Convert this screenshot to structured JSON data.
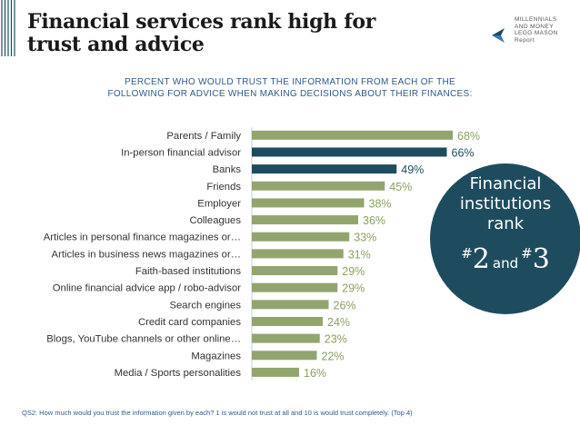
{
  "title_lines": [
    "Financial services rank high for",
    "trust and advice"
  ],
  "logo_lines": [
    "MILLENNIALS",
    "AND MONEY",
    "LEGG MASON",
    "Report"
  ],
  "subtitle_lines": [
    "PERCENT WHO WOULD TRUST THE INFORMATION FROM EACH OF THE",
    "FOLLOWING FOR ADVICE WHEN MAKING DECISIONS ABOUT THEIR FINANCES:"
  ],
  "colors": {
    "normal_bar": "#93a56f",
    "highlight_bar": "#1e4c5e",
    "normal_label": "#8aa060",
    "highlight_label": "#1e4c5e"
  },
  "chart_data": {
    "type": "bar",
    "orientation": "horizontal",
    "categories": [
      "Parents / Family",
      "In-person financial advisor",
      "Banks",
      "Friends",
      "Employer",
      "Colleagues",
      "Articles in personal finance magazines or…",
      "Articles in business news magazines or…",
      "Faith-based institutions",
      "Online financial advice app / robo-advisor",
      "Search engines",
      "Credit card companies",
      "Blogs, YouTube channels or other online…",
      "Magazines",
      "Media / Sports personalities"
    ],
    "values": [
      68,
      66,
      49,
      45,
      38,
      36,
      33,
      31,
      29,
      29,
      26,
      24,
      23,
      22,
      16
    ],
    "value_labels": [
      "68%",
      "66%",
      "49%",
      "45%",
      "38%",
      "36%",
      "33%",
      "31%",
      "29%",
      "29%",
      "26%",
      "24%",
      "23%",
      "22%",
      "16%"
    ],
    "highlighted": [
      false,
      true,
      true,
      false,
      false,
      false,
      false,
      false,
      false,
      false,
      false,
      false,
      false,
      false,
      false
    ],
    "unit": "%",
    "xlim": [
      0,
      100
    ]
  },
  "badge": {
    "lines": [
      "Financial",
      "institutions",
      "rank"
    ],
    "hash": "#",
    "first": "2",
    "and": "and",
    "second": "3"
  },
  "footnote": "QS2: How much would you trust the information given by each? 1 is would not trust at all and 10 is would trust completely. (Top 4)"
}
